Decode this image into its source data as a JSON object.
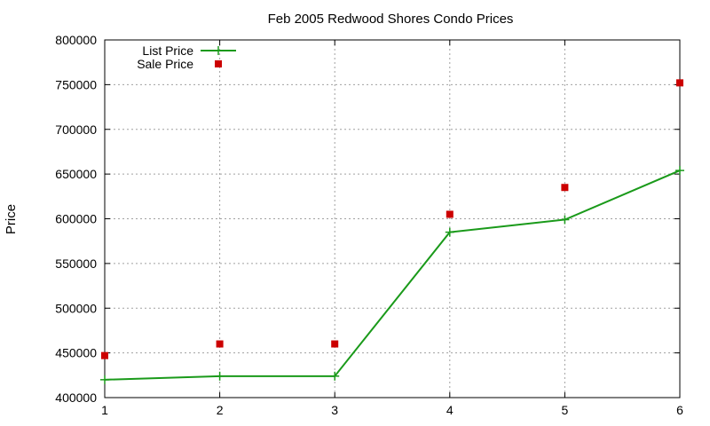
{
  "chart_data": {
    "type": "line",
    "title": "Feb 2005 Redwood Shores Condo Prices",
    "xlabel": "",
    "ylabel": "Price",
    "x": [
      1,
      2,
      3,
      4,
      5,
      6
    ],
    "xlim": [
      1,
      6
    ],
    "ylim": [
      400000,
      800000
    ],
    "x_ticks": [
      "1",
      "2",
      "3",
      "4",
      "5",
      "6"
    ],
    "y_ticks": [
      "400000",
      "450000",
      "500000",
      "550000",
      "600000",
      "650000",
      "700000",
      "750000",
      "800000"
    ],
    "grid": true,
    "legend_position": "top-left",
    "series": [
      {
        "name": "List Price",
        "style": "linespoints",
        "marker": "plus",
        "color": "#1a9a1a",
        "values": [
          420000,
          424000,
          424000,
          585000,
          599000,
          654000
        ]
      },
      {
        "name": "Sale Price",
        "style": "points",
        "marker": "square",
        "color": "#cc0000",
        "values": [
          447000,
          460000,
          460000,
          605000,
          635000,
          752000
        ]
      }
    ]
  }
}
